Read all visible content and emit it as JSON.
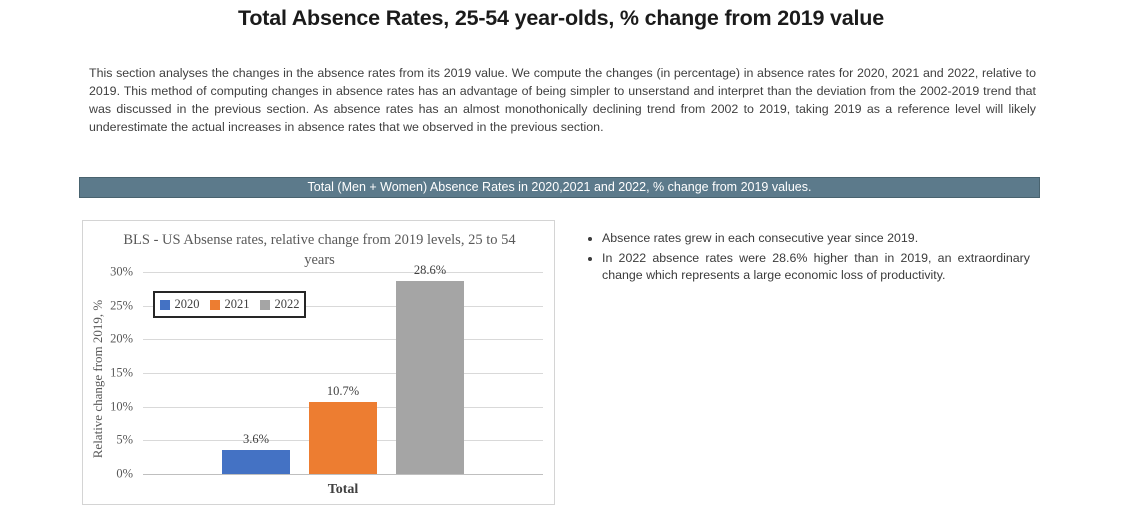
{
  "page": {
    "title": "Total Absence Rates, 25-54 year-olds, % change from 2019 value"
  },
  "intro": {
    "text": "This section analyses the changes in the absence rates from its 2019 value. We compute the changes (in percentage) in absence rates for 2020, 2021 and 2022, relative to 2019. This method of computing changes in absence rates has an advantage of being simpler to unserstand and interpret than the deviation from the 2002-2019 trend that was discussed in the previous section. As absence rates has an almost monothonically declining trend from 2002 to 2019, taking 2019 as a reference level will likely underestimate the actual increases in absence rates that we observed in the previous section."
  },
  "banner": {
    "text": "Total (Men + Women) Absence Rates in 2020,2021 and 2022, % change from 2019 values.",
    "bg_color": "#5c7a8b",
    "text_color": "#ffffff"
  },
  "chart_data": {
    "type": "bar",
    "title": "BLS - US Absense rates, relative change from 2019 levels, 25 to 54 years",
    "ylabel": "Relative change from 2019, %",
    "xlabel": "",
    "categories": [
      "Total"
    ],
    "series": [
      {
        "name": "2020",
        "values": [
          3.6
        ],
        "color": "#4472C4",
        "data_label": "3.6%"
      },
      {
        "name": "2021",
        "values": [
          10.7
        ],
        "color": "#ED7D31",
        "data_label": "10.7%"
      },
      {
        "name": "2022",
        "values": [
          28.6
        ],
        "color": "#A5A5A5",
        "data_label": "28.6%"
      }
    ],
    "y_ticks": [
      "30%",
      "25%",
      "20%",
      "15%",
      "10%",
      "5%",
      "0%"
    ],
    "ylim": [
      0,
      30
    ],
    "grid": true,
    "legend_position": "top-left-inside"
  },
  "insights": {
    "items": [
      "Absence rates grew in each consecutive year since 2019.",
      "In 2022 absence rates were 28.6% higher than in 2019, an extraordinary change which represents a large economic loss of productivity."
    ]
  }
}
